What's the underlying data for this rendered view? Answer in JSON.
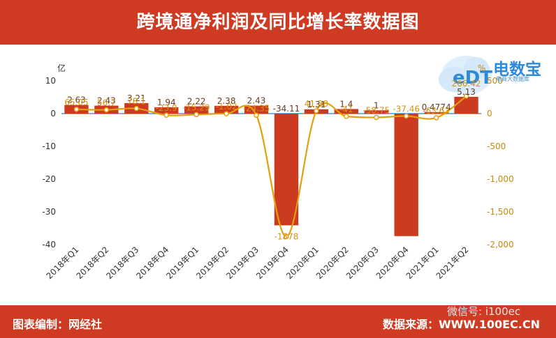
{
  "header": {
    "title": "跨境通净利润及同比增长率数据图"
  },
  "footer": {
    "left": "图表编制：网经社",
    "right": "数据来源：WWW.100EC.CN"
  },
  "watermark": {
    "wechat": "微信号: i100ec"
  },
  "logo": {
    "title": "电数宝",
    "subtitle": "电商大数据库",
    "mark": "eDT"
  },
  "colors": {
    "bar": "#cc3b20",
    "line": "#e2a00f",
    "header": "#cf3a22",
    "label": "#6b3a1f",
    "line_label": "#d8930c"
  },
  "chart_data": {
    "type": "bar",
    "categories": [
      "2018年Q1",
      "2018年Q2",
      "2018年Q3",
      "2018年Q4",
      "2019年Q1",
      "2019年Q2",
      "2019年Q3",
      "2019年Q4",
      "2020年Q1",
      "2020年Q2",
      "2020年Q3",
      "2020年Q4",
      "2021年Q1",
      "2021年Q2"
    ],
    "series": [
      {
        "type": "bar",
        "axis": "left",
        "values": [
          2.63,
          2.43,
          3.21,
          1.94,
          2.22,
          2.38,
          2.43,
          -34.11,
          1.31,
          1.4,
          1,
          -37.4,
          0.4774,
          5.13
        ],
        "labels": [
          "2.63",
          "2.43",
          "3.21",
          "1.94",
          "2.22",
          "2.38",
          "2.43",
          "-34.11",
          "1.31",
          "1.4",
          "1",
          "",
          "0.4774",
          "5.13"
        ]
      },
      {
        "type": "line",
        "axis": "right",
        "values": [
          65.05,
          56.7,
          78.1,
          -23.9,
          -15.29,
          -1.02,
          -24.35,
          -1878,
          41.38,
          -41,
          -58.75,
          -37.46,
          -63.63,
          266.42
        ],
        "labels": [
          "65.05",
          "56.7",
          "78.1",
          "-23.9",
          "-15.29",
          "-1.02",
          "-24.35",
          "-1878",
          "41.38",
          "-41",
          "-58.75",
          "-37.46",
          "-63.63",
          "266.42"
        ]
      }
    ],
    "yaxis_left": {
      "unit": "亿",
      "ticks": [
        "10",
        "0",
        "-10",
        "-20",
        "-30",
        "-40"
      ],
      "range": [
        -40,
        10
      ]
    },
    "yaxis_right": {
      "unit": "%",
      "ticks": [
        "500",
        "0",
        "-500",
        "-1,000",
        "-1,500",
        "-2,000"
      ],
      "range": [
        -2000,
        500
      ]
    },
    "grid": false
  }
}
